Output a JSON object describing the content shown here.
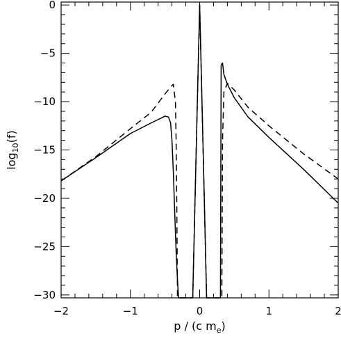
{
  "chart_data": {
    "type": "line",
    "xlabel": "p / (c m",
    "xlabel_subscript": "e",
    "xlabel_suffix": ")",
    "ylabel": "log",
    "ylabel_subscript": "10",
    "ylabel_suffix": "(f)",
    "xlim": [
      -2,
      2
    ],
    "ylim": [
      -30.3,
      0.3
    ],
    "x_ticks": [
      -2,
      -1,
      0,
      1,
      2
    ],
    "x_tick_labels": [
      "−2",
      "−1",
      "0",
      "1",
      "2"
    ],
    "y_ticks": [
      0,
      -5,
      -10,
      -15,
      -20,
      -25,
      -30
    ],
    "y_tick_labels": [
      "0",
      "−5",
      "−10",
      "−15",
      "−20",
      "−25",
      "−30"
    ],
    "grid": false,
    "legend": null,
    "series": [
      {
        "style": "solid",
        "color": "#000000",
        "x": [
          -2.0,
          -1.5,
          -1.0,
          -0.7,
          -0.5,
          -0.45,
          -0.42,
          -0.4,
          -0.38,
          -0.36,
          -0.34,
          -0.32,
          -0.305,
          -0.3,
          -0.25,
          -0.2,
          -0.15,
          -0.1,
          -0.05,
          0.0,
          0.05,
          0.1,
          0.15,
          0.2,
          0.25,
          0.3,
          0.31,
          0.33,
          0.35,
          0.4,
          0.5,
          0.7,
          1.0,
          1.5,
          2.0
        ],
        "y": [
          -18.2,
          -15.8,
          -13.3,
          -12.2,
          -11.5,
          -11.6,
          -12.2,
          -14.0,
          -17.3,
          -21.5,
          -25.5,
          -28.5,
          -30.3,
          -30.3,
          -30.3,
          -30.3,
          -30.3,
          -30.3,
          -15.0,
          0.0,
          -15.0,
          -30.3,
          -30.3,
          -30.3,
          -30.3,
          -30.3,
          -6.2,
          -6.0,
          -7.2,
          -8.2,
          -9.6,
          -11.6,
          -13.7,
          -17.0,
          -20.5
        ]
      },
      {
        "style": "dashed",
        "color": "#000000",
        "x": [
          -2.0,
          -1.5,
          -1.0,
          -0.7,
          -0.5,
          -0.42,
          -0.38,
          -0.35,
          -0.34,
          -0.33,
          -0.325,
          -0.32,
          -0.3,
          -0.25,
          -0.2,
          -0.15,
          -0.1,
          -0.05,
          0.0,
          0.05,
          0.1,
          0.15,
          0.2,
          0.25,
          0.3,
          0.32,
          0.33,
          0.35,
          0.4,
          0.5,
          0.7,
          1.0,
          1.5,
          2.0
        ],
        "y": [
          -18.2,
          -15.7,
          -12.8,
          -11.1,
          -9.2,
          -8.5,
          -8.2,
          -10.0,
          -14.0,
          -21.0,
          -26.0,
          -30.3,
          -30.3,
          -30.3,
          -30.3,
          -30.3,
          -30.3,
          -15.0,
          0.0,
          -15.0,
          -30.3,
          -30.3,
          -30.3,
          -30.3,
          -30.3,
          -30.3,
          -14.0,
          -9.0,
          -8.1,
          -8.8,
          -10.6,
          -12.5,
          -15.4,
          -18.0
        ]
      }
    ]
  }
}
